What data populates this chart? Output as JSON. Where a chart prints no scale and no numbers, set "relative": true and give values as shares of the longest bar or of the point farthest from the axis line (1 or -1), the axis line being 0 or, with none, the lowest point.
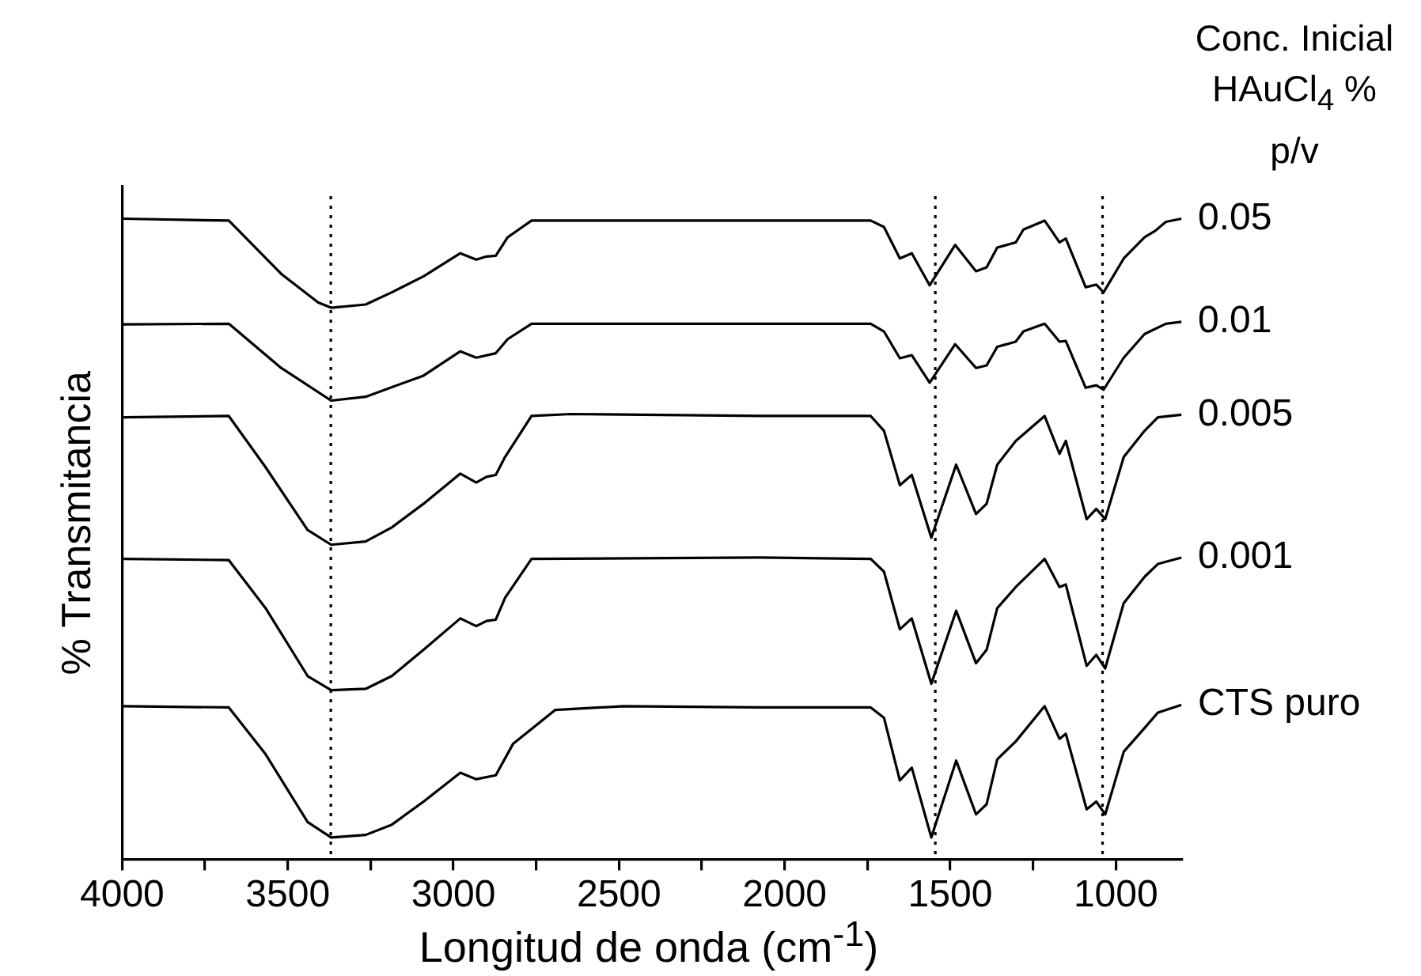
{
  "chart_data": {
    "type": "line",
    "relative": true,
    "xlabel": "Longitud de onda (cm$^{-1}$)",
    "ylabel": "% Transmitancia",
    "legend_title": "Conc. Inicial HAuCl$_{4}$ % p/v",
    "xlim": [
      4000,
      800
    ],
    "xticks": [
      4000,
      {
        "value": 3750,
        "label": null
      },
      3500,
      {
        "value": 3250,
        "label": null
      },
      3000,
      {
        "value": 2750,
        "label": null
      },
      2500,
      {
        "value": 2250,
        "label": null
      },
      2000,
      {
        "value": 1750,
        "label": null
      },
      1500,
      {
        "value": 1250,
        "label": null
      },
      1000
    ],
    "ref_lines": [
      {
        "axis": "x",
        "value": 3370,
        "color": "#000000",
        "line_style": "dotted"
      },
      {
        "axis": "x",
        "value": 1545,
        "color": "#000000",
        "line_style": "dotted"
      },
      {
        "axis": "x",
        "value": 1040,
        "color": "#000000",
        "line_style": "dotted"
      }
    ],
    "series": [
      {
        "name": "0.05",
        "color": "#000000",
        "x": [
          3996,
          3678,
          3520,
          3408,
          3369,
          3265,
          3186,
          3090,
          2979,
          2931,
          2900,
          2872,
          2836,
          2764,
          2073,
          1740,
          1700,
          1652,
          1616,
          1562,
          1485,
          1422,
          1390,
          1358,
          1302,
          1279,
          1215,
          1170,
          1151,
          1091,
          1059,
          1037,
          976,
          913,
          881,
          849,
          802
        ],
        "values": [
          1.0,
          0.997,
          0.914,
          0.869,
          0.861,
          0.866,
          0.885,
          0.91,
          0.946,
          0.936,
          0.941,
          0.942,
          0.971,
          0.997,
          0.997,
          0.997,
          0.987,
          0.938,
          0.946,
          0.896,
          0.959,
          0.918,
          0.924,
          0.955,
          0.963,
          0.983,
          0.997,
          0.963,
          0.969,
          0.893,
          0.897,
          0.885,
          0.938,
          0.971,
          0.981,
          0.995,
          1.0
        ]
      },
      {
        "name": "0.01",
        "color": "#000000",
        "x": [
          3996,
          3678,
          3520,
          3369,
          3265,
          3090,
          2979,
          2931,
          2872,
          2836,
          2764,
          2073,
          1740,
          1700,
          1652,
          1616,
          1562,
          1485,
          1422,
          1390,
          1358,
          1302,
          1279,
          1215,
          1170,
          1151,
          1091,
          1059,
          1037,
          976,
          913,
          849,
          802
        ],
        "values": [
          0.835,
          0.836,
          0.767,
          0.716,
          0.722,
          0.755,
          0.793,
          0.783,
          0.79,
          0.812,
          0.836,
          0.836,
          0.836,
          0.824,
          0.782,
          0.787,
          0.744,
          0.804,
          0.767,
          0.771,
          0.8,
          0.808,
          0.824,
          0.836,
          0.808,
          0.809,
          0.736,
          0.74,
          0.733,
          0.783,
          0.82,
          0.836,
          0.839
        ]
      },
      {
        "name": "0.005",
        "color": "#000000",
        "x": [
          3996,
          3678,
          3567,
          3440,
          3369,
          3265,
          3186,
          3090,
          2979,
          2931,
          2900,
          2872,
          2844,
          2764,
          2645,
          2073,
          1740,
          1700,
          1652,
          1616,
          1557,
          1482,
          1422,
          1390,
          1358,
          1302,
          1215,
          1170,
          1151,
          1088,
          1059,
          1032,
          976,
          913,
          873,
          802
        ],
        "values": [
          0.69,
          0.692,
          0.612,
          0.514,
          0.491,
          0.496,
          0.518,
          0.555,
          0.602,
          0.588,
          0.597,
          0.6,
          0.628,
          0.692,
          0.695,
          0.692,
          0.692,
          0.669,
          0.584,
          0.6,
          0.502,
          0.616,
          0.539,
          0.555,
          0.616,
          0.653,
          0.692,
          0.633,
          0.653,
          0.531,
          0.547,
          0.531,
          0.628,
          0.669,
          0.69,
          0.694
        ]
      },
      {
        "name": "0.001",
        "color": "#000000",
        "x": [
          3996,
          3678,
          3567,
          3440,
          3369,
          3265,
          3186,
          3090,
          2979,
          2931,
          2900,
          2872,
          2844,
          2764,
          2073,
          1740,
          1700,
          1652,
          1616,
          1557,
          1482,
          1422,
          1390,
          1358,
          1302,
          1215,
          1170,
          1151,
          1088,
          1059,
          1032,
          976,
          913,
          873,
          802
        ],
        "values": [
          0.469,
          0.467,
          0.392,
          0.286,
          0.264,
          0.266,
          0.286,
          0.327,
          0.376,
          0.364,
          0.372,
          0.374,
          0.408,
          0.469,
          0.471,
          0.469,
          0.449,
          0.359,
          0.376,
          0.274,
          0.388,
          0.306,
          0.327,
          0.392,
          0.425,
          0.469,
          0.425,
          0.429,
          0.302,
          0.319,
          0.298,
          0.4,
          0.441,
          0.461,
          0.471
        ]
      },
      {
        "name": "CTS puro",
        "color": "#000000",
        "x": [
          3996,
          3678,
          3567,
          3440,
          3369,
          3265,
          3186,
          3090,
          2979,
          2931,
          2872,
          2820,
          2693,
          2486,
          2073,
          1740,
          1700,
          1652,
          1616,
          1557,
          1482,
          1422,
          1390,
          1358,
          1302,
          1215,
          1170,
          1151,
          1088,
          1059,
          1032,
          976,
          913,
          873,
          802
        ],
        "values": [
          0.239,
          0.237,
          0.164,
          0.058,
          0.034,
          0.038,
          0.054,
          0.09,
          0.135,
          0.125,
          0.131,
          0.18,
          0.233,
          0.239,
          0.237,
          0.237,
          0.221,
          0.123,
          0.143,
          0.034,
          0.154,
          0.07,
          0.086,
          0.156,
          0.184,
          0.239,
          0.188,
          0.196,
          0.078,
          0.09,
          0.07,
          0.168,
          0.205,
          0.229,
          0.241
        ]
      }
    ]
  }
}
